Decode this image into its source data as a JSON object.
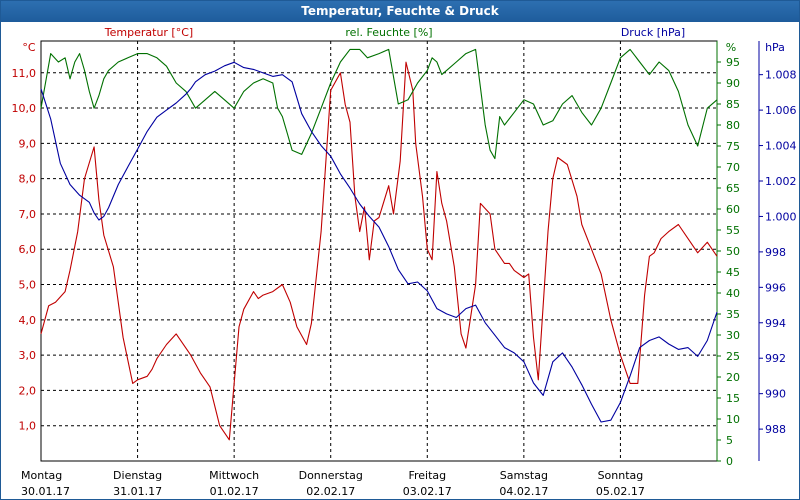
{
  "chart_data": {
    "type": "line",
    "title": "Temperatur, Feuchte & Druck",
    "x_unit": "days since 30.01.17 00:00",
    "x_range": [
      0,
      7
    ],
    "categories": [
      {
        "day": "Montag",
        "date": "30.01.17"
      },
      {
        "day": "Dienstag",
        "date": "31.01.17"
      },
      {
        "day": "Mittwoch",
        "date": "01.02.17"
      },
      {
        "day": "Donnerstag",
        "date": "02.02.17"
      },
      {
        "day": "Freitag",
        "date": "03.02.17"
      },
      {
        "day": "Samstag",
        "date": "04.02.17"
      },
      {
        "day": "Sonntag",
        "date": "05.02.17"
      }
    ],
    "axes": {
      "temperature": {
        "label": "Temperatur [°C]",
        "unit": "°C",
        "range": [
          0,
          11.9
        ],
        "ticks": [
          "1,0",
          "2,0",
          "3,0",
          "4,0",
          "5,0",
          "6,0",
          "7,0",
          "8,0",
          "9,0",
          "10,0",
          "11,0"
        ],
        "color": "#c00000"
      },
      "humidity": {
        "label": "rel. Feuchte [%]",
        "unit": "%",
        "range": [
          0,
          100
        ],
        "ticks": [
          "0",
          "5",
          "10",
          "15",
          "20",
          "25",
          "30",
          "35",
          "40",
          "45",
          "50",
          "55",
          "60",
          "65",
          "70",
          "75",
          "80",
          "85",
          "90",
          "95"
        ],
        "color": "#007000"
      },
      "pressure": {
        "label": "Druck [hPa]",
        "unit": "hPa",
        "range": [
          986.2,
          1009.9
        ],
        "ticks": [
          "988",
          "990",
          "992",
          "994",
          "996",
          "998",
          "1.000",
          "1.002",
          "1.004",
          "1.006",
          "1.008"
        ],
        "color": "#0000a0"
      }
    },
    "series": [
      {
        "name": "Temperatur",
        "axis": "temperature",
        "color": "#c00000",
        "x": [
          0,
          0.08,
          0.15,
          0.25,
          0.3,
          0.38,
          0.45,
          0.55,
          0.6,
          0.65,
          0.75,
          0.85,
          0.95,
          1.0,
          1.1,
          1.15,
          1.2,
          1.3,
          1.4,
          1.5,
          1.55,
          1.65,
          1.75,
          1.85,
          1.95,
          2.05,
          2.1,
          2.2,
          2.25,
          2.3,
          2.4,
          2.5,
          2.58,
          2.65,
          2.75,
          2.8,
          2.9,
          3.0,
          3.1,
          3.15,
          3.2,
          3.25,
          3.3,
          3.35,
          3.4,
          3.45,
          3.5,
          3.6,
          3.65,
          3.72,
          3.78,
          3.85,
          3.88,
          3.95,
          4.0,
          4.05,
          4.1,
          4.15,
          4.2,
          4.28,
          4.35,
          4.4,
          4.5,
          4.55,
          4.65,
          4.7,
          4.8,
          4.85,
          4.9,
          5.0,
          5.05,
          5.1,
          5.15,
          5.25,
          5.3,
          5.35,
          5.45,
          5.55,
          5.6,
          5.7,
          5.8,
          5.9,
          6.0,
          6.1,
          6.18,
          6.25,
          6.3,
          6.35,
          6.42,
          6.5,
          6.6,
          6.7,
          6.8,
          6.9,
          7.0
        ],
        "values": [
          3.6,
          4.4,
          4.5,
          4.8,
          5.4,
          6.5,
          8.0,
          8.9,
          7.4,
          6.4,
          5.5,
          3.5,
          2.2,
          2.3,
          2.4,
          2.6,
          2.9,
          3.3,
          3.6,
          3.2,
          3.0,
          2.5,
          2.1,
          1.0,
          0.6,
          3.8,
          4.3,
          4.8,
          4.6,
          4.7,
          4.8,
          5.0,
          4.5,
          3.8,
          3.3,
          3.9,
          6.5,
          10.5,
          11.0,
          10.1,
          9.6,
          7.5,
          6.5,
          7.2,
          5.7,
          6.8,
          6.9,
          7.8,
          7.0,
          8.5,
          11.3,
          10.5,
          9.0,
          7.5,
          6.0,
          5.7,
          8.2,
          7.3,
          6.8,
          5.5,
          3.6,
          3.2,
          5.0,
          7.3,
          7.0,
          6.0,
          5.6,
          5.6,
          5.4,
          5.2,
          5.3,
          3.5,
          2.3,
          6.5,
          8.0,
          8.6,
          8.4,
          7.5,
          6.7,
          6.0,
          5.3,
          4.0,
          3.0,
          2.2,
          2.2,
          4.7,
          5.8,
          5.9,
          6.3,
          6.5,
          6.7,
          6.3,
          5.9,
          6.2,
          5.8
        ]
      },
      {
        "name": "rel. Feuchte",
        "axis": "humidity",
        "color": "#007000",
        "x": [
          0,
          0.1,
          0.18,
          0.25,
          0.3,
          0.35,
          0.4,
          0.45,
          0.5,
          0.55,
          0.6,
          0.65,
          0.7,
          0.8,
          0.9,
          1.0,
          1.1,
          1.2,
          1.3,
          1.4,
          1.5,
          1.6,
          1.7,
          1.8,
          1.9,
          2.0,
          2.1,
          2.2,
          2.3,
          2.4,
          2.45,
          2.5,
          2.55,
          2.6,
          2.7,
          2.8,
          2.9,
          3.0,
          3.1,
          3.2,
          3.3,
          3.38,
          3.5,
          3.6,
          3.7,
          3.8,
          3.9,
          4.0,
          4.05,
          4.1,
          4.15,
          4.2,
          4.3,
          4.4,
          4.5,
          4.6,
          4.65,
          4.7,
          4.75,
          4.8,
          4.9,
          5.0,
          5.1,
          5.2,
          5.3,
          5.4,
          5.5,
          5.6,
          5.7,
          5.8,
          5.9,
          6.0,
          6.1,
          6.2,
          6.3,
          6.4,
          6.5,
          6.6,
          6.7,
          6.8,
          6.9,
          7.0
        ],
        "values": [
          84,
          97,
          95,
          96,
          91,
          95,
          97,
          93,
          88,
          84,
          87,
          91,
          93,
          95,
          96,
          97,
          97,
          96,
          94,
          90,
          88,
          84,
          86,
          88,
          86,
          84,
          88,
          90,
          91,
          90,
          84,
          82,
          78,
          74,
          73,
          78,
          84,
          90,
          95,
          98,
          98,
          96,
          97,
          98,
          85,
          86,
          90,
          93,
          96,
          95,
          92,
          93,
          95,
          97,
          98,
          80,
          74,
          72,
          82,
          80,
          83,
          86,
          85,
          80,
          81,
          85,
          87,
          83,
          80,
          84,
          90,
          96,
          98,
          95,
          92,
          95,
          93,
          88,
          80,
          75,
          84,
          86
        ]
      },
      {
        "name": "Druck",
        "axis": "pressure",
        "color": "#0000a0",
        "x": [
          0,
          0.1,
          0.2,
          0.3,
          0.4,
          0.5,
          0.55,
          0.6,
          0.65,
          0.7,
          0.8,
          0.9,
          1.0,
          1.1,
          1.2,
          1.3,
          1.4,
          1.5,
          1.55,
          1.6,
          1.7,
          1.8,
          1.9,
          2.0,
          2.1,
          2.2,
          2.3,
          2.4,
          2.5,
          2.6,
          2.7,
          2.8,
          2.9,
          3.0,
          3.1,
          3.2,
          3.3,
          3.4,
          3.5,
          3.6,
          3.7,
          3.8,
          3.9,
          4.0,
          4.1,
          4.2,
          4.3,
          4.4,
          4.5,
          4.6,
          4.7,
          4.8,
          4.9,
          5.0,
          5.1,
          5.2,
          5.3,
          5.4,
          5.5,
          5.6,
          5.7,
          5.8,
          5.9,
          6.0,
          6.1,
          6.2,
          6.3,
          6.4,
          6.5,
          6.6,
          6.7,
          6.8,
          6.9,
          7.0
        ],
        "values": [
          1007.2,
          1005.5,
          1003.0,
          1001.8,
          1001.2,
          1000.8,
          1000.2,
          999.8,
          1000.0,
          1000.5,
          1001.8,
          1002.8,
          1003.8,
          1004.8,
          1005.6,
          1006.0,
          1006.4,
          1006.9,
          1007.2,
          1007.6,
          1008.0,
          1008.2,
          1008.5,
          1008.7,
          1008.4,
          1008.3,
          1008.1,
          1007.9,
          1008.0,
          1007.6,
          1005.8,
          1004.8,
          1004.0,
          1003.4,
          1002.4,
          1001.6,
          1000.7,
          1000.0,
          999.4,
          998.3,
          997.0,
          996.2,
          996.3,
          995.8,
          994.8,
          994.5,
          994.3,
          994.8,
          995.0,
          994.0,
          993.3,
          992.6,
          992.3,
          991.8,
          990.6,
          989.9,
          991.8,
          992.3,
          991.5,
          990.5,
          989.4,
          988.4,
          988.5,
          989.5,
          991.0,
          992.6,
          993.0,
          993.2,
          992.8,
          992.5,
          992.6,
          992.1,
          993.0,
          994.6
        ]
      }
    ]
  }
}
